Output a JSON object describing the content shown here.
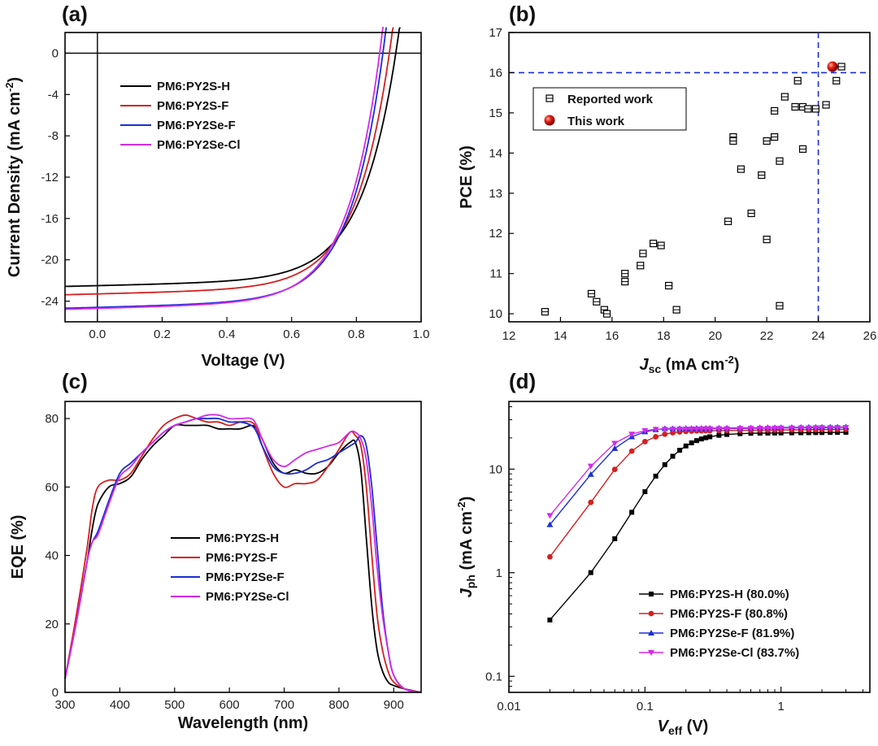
{
  "chart_data": [
    {
      "panel": "(a)",
      "type": "line",
      "xlabel": "Voltage (V)",
      "ylabel_main": "Current Density (mA cm",
      "ylabel_sup": "-2",
      "ylabel_close": ")",
      "xlim": [
        -0.1,
        1.0
      ],
      "ylim": [
        -26,
        2
      ],
      "xticks": [
        "0.0",
        "0.2",
        "0.4",
        "0.6",
        "0.8",
        "1.0"
      ],
      "yticks": [
        "0",
        "-4",
        "-8",
        "-12",
        "-16",
        "-20",
        "-24"
      ],
      "legend_position": "upper-left",
      "series": [
        {
          "name": "PM6:PY2S-H",
          "color": "#000000",
          "jsc": -22.5,
          "voc": 0.925,
          "n": 2.9
        },
        {
          "name": "PM6:PY2S-F",
          "color": "#d42020",
          "jsc": -23.3,
          "voc": 0.905,
          "n": 3.6
        },
        {
          "name": "PM6:PY2Se-F",
          "color": "#1a2ed6",
          "jsc": -24.6,
          "voc": 0.885,
          "n": 4.4
        },
        {
          "name": "PM6:PY2Se-Cl",
          "color": "#d42ae8",
          "jsc": -24.7,
          "voc": 0.875,
          "n": 4.7
        }
      ]
    },
    {
      "panel": "(b)",
      "type": "scatter",
      "xlabel_j": "J",
      "xlabel_sub": "sc",
      "xlabel_rest": " (mA cm",
      "xlabel_sup": "-2",
      "xlabel_close": ")",
      "ylabel": "PCE (%)",
      "xlim": [
        12,
        26
      ],
      "ylim": [
        9.8,
        17
      ],
      "xticks": [
        "12",
        "14",
        "16",
        "18",
        "20",
        "22",
        "24",
        "26"
      ],
      "yticks": [
        "10",
        "11",
        "12",
        "13",
        "14",
        "15",
        "16",
        "17"
      ],
      "reference_lines": {
        "x": 24.0,
        "y": 16.0
      },
      "legend_position": "upper-left-inside",
      "series": [
        {
          "name": "Reported work",
          "points": [
            [
              13.4,
              10.05
            ],
            [
              15.2,
              10.5
            ],
            [
              15.4,
              10.3
            ],
            [
              15.7,
              10.1
            ],
            [
              15.8,
              10.0
            ],
            [
              16.5,
              11.0
            ],
            [
              16.5,
              10.8
            ],
            [
              17.1,
              11.2
            ],
            [
              17.2,
              11.5
            ],
            [
              17.6,
              11.75
            ],
            [
              17.9,
              11.7
            ],
            [
              18.2,
              10.7
            ],
            [
              18.5,
              10.1
            ],
            [
              20.5,
              12.3
            ],
            [
              20.7,
              14.4
            ],
            [
              20.7,
              14.3
            ],
            [
              21.0,
              13.6
            ],
            [
              21.4,
              12.5
            ],
            [
              21.8,
              13.45
            ],
            [
              22.0,
              14.3
            ],
            [
              22.0,
              11.85
            ],
            [
              22.3,
              14.4
            ],
            [
              22.3,
              15.05
            ],
            [
              22.5,
              13.8
            ],
            [
              22.5,
              10.2
            ],
            [
              22.7,
              15.4
            ],
            [
              23.1,
              15.15
            ],
            [
              23.2,
              15.8
            ],
            [
              23.4,
              15.15
            ],
            [
              23.4,
              14.1
            ],
            [
              23.6,
              15.1
            ],
            [
              23.9,
              15.1
            ],
            [
              24.3,
              15.2
            ],
            [
              24.7,
              15.8
            ],
            [
              24.9,
              16.15
            ]
          ]
        },
        {
          "name": "This work",
          "points": [
            [
              24.55,
              16.15
            ]
          ]
        }
      ]
    },
    {
      "panel": "(c)",
      "type": "line",
      "xlabel": "Wavelength (nm)",
      "ylabel": "EQE (%)",
      "xlim": [
        300,
        950
      ],
      "ylim": [
        0,
        85
      ],
      "xticks": [
        "300",
        "400",
        "500",
        "600",
        "700",
        "800",
        "900"
      ],
      "yticks": [
        "0",
        "20",
        "40",
        "60",
        "80"
      ],
      "legend_position": "lower-center",
      "x": [
        300,
        320,
        340,
        350,
        360,
        380,
        400,
        420,
        440,
        460,
        480,
        500,
        520,
        540,
        560,
        580,
        600,
        620,
        640,
        650,
        660,
        680,
        700,
        720,
        740,
        760,
        780,
        800,
        820,
        830,
        840,
        850,
        860,
        870,
        880,
        890,
        900,
        920,
        950
      ],
      "series": [
        {
          "name": "PM6:PY2S-H",
          "color": "#000000",
          "values": [
            4,
            20,
            38,
            48,
            55,
            60,
            61,
            63,
            68,
            72,
            75,
            78,
            78,
            78,
            78,
            77,
            77,
            77,
            78,
            77,
            74,
            67,
            64,
            65,
            64,
            64,
            66,
            70,
            73,
            73,
            65,
            45,
            25,
            12,
            6,
            3,
            2,
            1,
            0
          ]
        },
        {
          "name": "PM6:PY2S-F",
          "color": "#d42020",
          "values": [
            4,
            22,
            42,
            54,
            60,
            62,
            62,
            64,
            69,
            74,
            78,
            80,
            81,
            80,
            79,
            79,
            78,
            79,
            79,
            77,
            72,
            64,
            60,
            61,
            61,
            62,
            66,
            71,
            76,
            75,
            72,
            60,
            40,
            22,
            12,
            6,
            3,
            1,
            0
          ]
        },
        {
          "name": "PM6:PY2Se-F",
          "color": "#1a2ed6",
          "values": [
            4,
            20,
            38,
            44,
            47,
            56,
            64,
            67,
            70,
            73,
            76,
            78,
            79,
            80,
            80,
            80,
            79,
            79,
            78,
            76,
            72,
            66,
            64,
            64,
            65,
            67,
            68,
            70,
            72,
            73,
            75,
            72,
            60,
            42,
            24,
            12,
            5,
            1,
            0
          ]
        },
        {
          "name": "PM6:PY2Se-Cl",
          "color": "#d42ae8",
          "values": [
            4,
            20,
            38,
            44,
            46,
            55,
            63,
            66,
            70,
            73,
            76,
            78,
            79,
            80,
            81,
            81,
            80,
            80,
            80,
            78,
            74,
            68,
            66,
            68,
            70,
            71,
            72,
            73,
            76,
            76,
            74,
            68,
            54,
            36,
            22,
            12,
            5,
            1,
            0
          ]
        }
      ]
    },
    {
      "panel": "(d)",
      "type": "line",
      "scale": "log-log",
      "xlabel_v": "V",
      "xlabel_sub": "eff",
      "xlabel_rest": " (V)",
      "ylabel_j": "J",
      "ylabel_sub": "ph",
      "ylabel_rest": " (mA cm",
      "ylabel_sup": "-2",
      "ylabel_close": ")",
      "xlim": [
        0.01,
        4.5
      ],
      "ylim": [
        0.07,
        45
      ],
      "xticks": [
        "0.01",
        "0.1",
        "1"
      ],
      "yticks": [
        "0.1",
        "1",
        "10"
      ],
      "legend_position": "lower-right",
      "series": [
        {
          "name": "PM6:PY2S-H (80.0%)",
          "color": "#000000",
          "marker": "square",
          "j0": 0.32,
          "jsat": 22.0,
          "alpha": 1.2,
          "v0": 0.155,
          "p": 3.2
        },
        {
          "name": "PM6:PY2S-F (80.8%)",
          "color": "#d42020",
          "marker": "circle",
          "j0": 1.15,
          "jsat": 23.5,
          "alpha": 1.2,
          "v0": 0.078,
          "p": 3.2
        },
        {
          "name": "PM6:PY2Se-F (81.9%)",
          "color": "#1a2ed6",
          "marker": "triangle-up",
          "j0": 2.4,
          "jsat": 24.8,
          "alpha": 1.2,
          "v0": 0.064,
          "p": 3.2
        },
        {
          "name": "PM6:PY2Se-Cl (83.7%)",
          "color": "#d42ae8",
          "marker": "triangle-down",
          "j0": 2.9,
          "jsat": 24.5,
          "alpha": 1.2,
          "v0": 0.058,
          "p": 3.2
        }
      ]
    }
  ]
}
